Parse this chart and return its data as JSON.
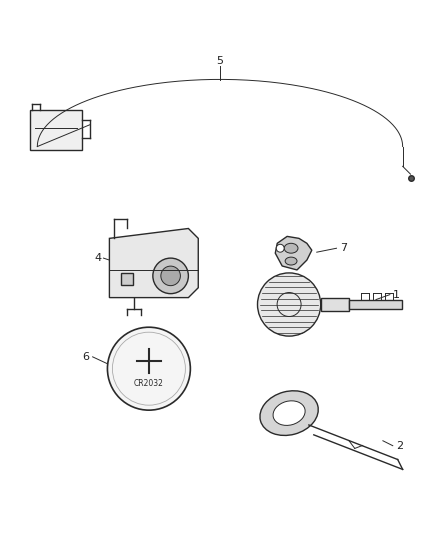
{
  "bg_color": "#ffffff",
  "line_color": "#2a2a2a",
  "label_color": "#222222",
  "label_fontsize": 8,
  "parts": [
    {
      "id": "5"
    },
    {
      "id": "4"
    },
    {
      "id": "7"
    },
    {
      "id": "1"
    },
    {
      "id": "6"
    },
    {
      "id": "2"
    }
  ],
  "figsize": [
    4.38,
    5.33
  ],
  "dpi": 100
}
